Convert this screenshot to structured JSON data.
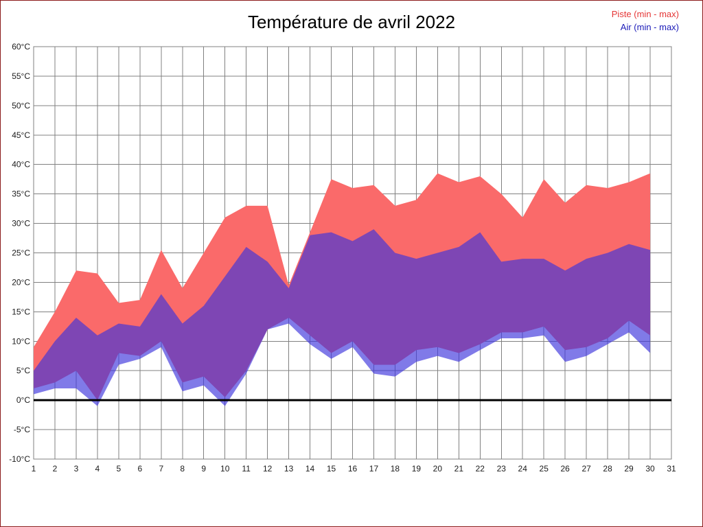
{
  "title": "Température de avril 2022",
  "legend": {
    "piste_label": "Piste (min - max)",
    "air_label": "Air (min - max)",
    "piste_color": "#e53535",
    "air_color": "#1a1ab8"
  },
  "chart_data": {
    "type": "area",
    "title": "Température de avril 2022",
    "xlabel": "",
    "ylabel": "",
    "xlim": [
      1,
      31
    ],
    "ylim": [
      -10,
      60
    ],
    "grid": true,
    "legend_position": "top-right",
    "x": [
      1,
      2,
      3,
      4,
      5,
      6,
      7,
      8,
      9,
      10,
      11,
      12,
      13,
      14,
      15,
      16,
      17,
      18,
      19,
      20,
      21,
      22,
      23,
      24,
      25,
      26,
      27,
      28,
      29,
      30
    ],
    "series": [
      {
        "name": "Piste min",
        "values": [
          2,
          3,
          5,
          0,
          8,
          7.5,
          10,
          3,
          4,
          0.5,
          5,
          12,
          14,
          11,
          8,
          10,
          6,
          6,
          8.5,
          9,
          8,
          9.5,
          11.5,
          11.5,
          12.5,
          8.5,
          9,
          10.5,
          13.5,
          11
        ]
      },
      {
        "name": "Piste max",
        "values": [
          9,
          15,
          22,
          21.5,
          16.5,
          17,
          25.5,
          19,
          25,
          31,
          33,
          33,
          19.5,
          28.5,
          37.5,
          36,
          36.5,
          33,
          34,
          38.5,
          37,
          38,
          35,
          31,
          37.5,
          33.5,
          36.5,
          36,
          37,
          38.5
        ]
      },
      {
        "name": "Air min",
        "values": [
          1,
          2,
          2,
          -1,
          6,
          7,
          9,
          1.5,
          2.5,
          -1,
          4.5,
          12,
          13,
          9.5,
          7,
          9,
          4.5,
          4,
          6.5,
          7.5,
          6.5,
          8.5,
          10.5,
          10.5,
          11,
          6.5,
          7.5,
          9.5,
          11.5,
          8
        ]
      },
      {
        "name": "Air max",
        "values": [
          5,
          10,
          14,
          11,
          13,
          12.5,
          18,
          13,
          16,
          21,
          26,
          23.5,
          19,
          28,
          28.5,
          27,
          29,
          25,
          24,
          25,
          26,
          28.5,
          23.5,
          24,
          24,
          22,
          24,
          25,
          26.5,
          25.5
        ]
      }
    ],
    "y_tick_values": [
      60,
      55,
      50,
      45,
      40,
      35,
      30,
      25,
      20,
      15,
      10,
      5,
      0,
      -5,
      -10
    ],
    "y_tick_labels": [
      "60°C",
      "55°C",
      "50°C",
      "45°C",
      "40°C",
      "35°C",
      "30°C",
      "25°C",
      "20°C",
      "15°C",
      "10°C",
      "5°C",
      "0°C",
      "-5°C",
      "-10°C"
    ],
    "x_tick_values": [
      1,
      2,
      3,
      4,
      5,
      6,
      7,
      8,
      9,
      10,
      11,
      12,
      13,
      14,
      15,
      16,
      17,
      18,
      19,
      20,
      21,
      22,
      23,
      24,
      25,
      26,
      27,
      28,
      29,
      30,
      31
    ],
    "x_tick_labels": [
      "1",
      "2",
      "3",
      "4",
      "5",
      "6",
      "7",
      "8",
      "9",
      "10",
      "11",
      "12",
      "13",
      "14",
      "15",
      "16",
      "17",
      "18",
      "19",
      "20",
      "21",
      "22",
      "23",
      "24",
      "25",
      "26",
      "27",
      "28",
      "29",
      "30",
      "31"
    ],
    "colors": {
      "piste_fill": "#fa6a6a",
      "air_fill": "rgba(60,50,220,0.65)",
      "grid_line": "#808080",
      "zero_line": "#000000",
      "tick_text": "#1a1a1a"
    }
  }
}
